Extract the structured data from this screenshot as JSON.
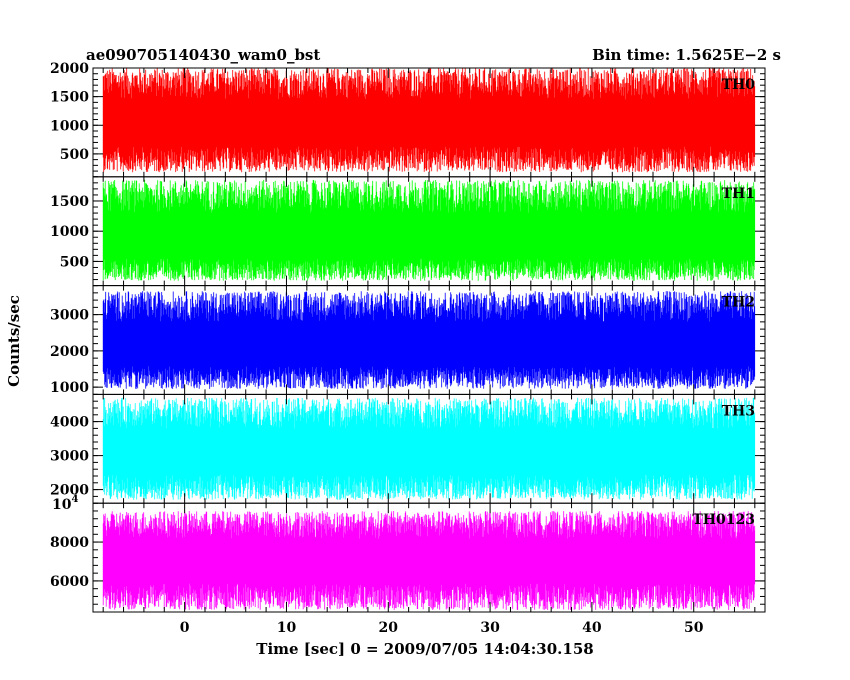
{
  "header": {
    "title": "ae090705140430_wam0_bst",
    "bin_time": "Bin time: 1.5625E−2 s"
  },
  "chart_data": {
    "type": "line",
    "xlabel": "Time [sec] 0 = 2009/07/05 14:04:30.158",
    "ylabel": "Counts/sec",
    "xlim": [
      -9,
      57
    ],
    "x_range": [
      -8,
      56
    ],
    "x_ticks": [
      0,
      10,
      20,
      30,
      40,
      50
    ],
    "x_tick_labels": [
      "0",
      "10",
      "20",
      "30",
      "40",
      "50"
    ],
    "exponent_label": "10",
    "exponent_power": "4",
    "panels": [
      {
        "name": "TH0",
        "color": "#ff0000",
        "ylim": [
          100,
          2000
        ],
        "mean": 1000,
        "low": 180,
        "high": 2000,
        "ticks": [
          2000,
          1500,
          1000,
          500
        ],
        "tick_labels": [
          "2000",
          "1500",
          "1000",
          "500"
        ]
      },
      {
        "name": "TH1",
        "color": "#00ff00",
        "ylim": [
          100,
          1900
        ],
        "mean": 850,
        "low": 180,
        "high": 1850,
        "ticks": [
          1500,
          1000,
          500
        ],
        "tick_labels": [
          "1500",
          "1000",
          "500"
        ]
      },
      {
        "name": "TH2",
        "color": "#0000ff",
        "ylim": [
          800,
          3800
        ],
        "mean": 2100,
        "low": 950,
        "high": 3650,
        "ticks": [
          3000,
          2000,
          1000
        ],
        "tick_labels": [
          "3000",
          "2000",
          "1000"
        ]
      },
      {
        "name": "TH3",
        "color": "#00ffff",
        "ylim": [
          1600,
          4800
        ],
        "mean": 3050,
        "low": 1700,
        "high": 4700,
        "ticks": [
          4000,
          3000,
          2000
        ],
        "tick_labels": [
          "4000",
          "3000",
          "2000"
        ]
      },
      {
        "name": "TH0123",
        "color": "#ff00ff",
        "ylim": [
          4400,
          10000
        ],
        "mean": 7000,
        "low": 4500,
        "high": 9600,
        "ticks": [
          8000,
          6000
        ],
        "tick_labels": [
          "8000",
          "6000"
        ]
      }
    ]
  }
}
